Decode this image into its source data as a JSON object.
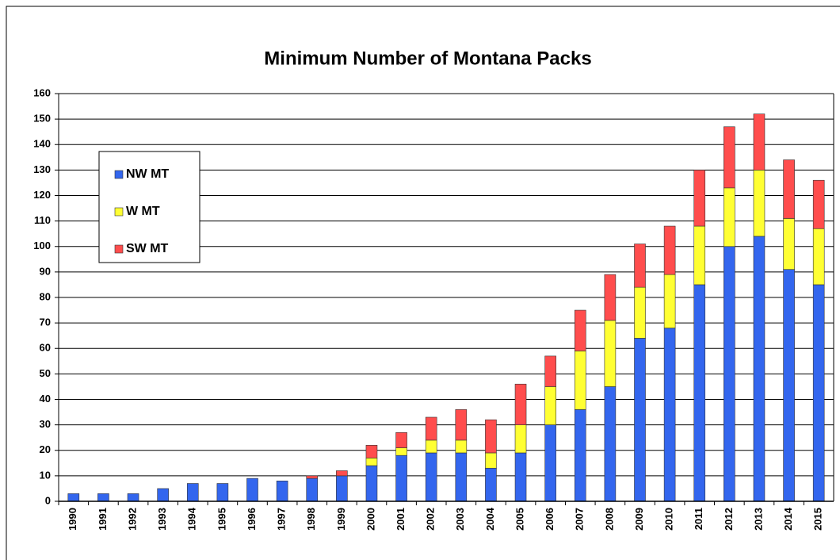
{
  "chart_data": {
    "type": "stacked_bar",
    "title": "Minimum Number of Montana Packs",
    "categories": [
      "1990",
      "1991",
      "1992",
      "1993",
      "1994",
      "1995",
      "1996",
      "1997",
      "1998",
      "1999",
      "2000",
      "2001",
      "2002",
      "2003",
      "2004",
      "2005",
      "2006",
      "2007",
      "2008",
      "2009",
      "2010",
      "2011",
      "2012",
      "2013",
      "2014",
      "2015"
    ],
    "series": [
      {
        "name": "NW MT",
        "color": "#3366ee",
        "values": [
          3,
          3,
          3,
          5,
          7,
          7,
          9,
          8,
          9,
          10,
          14,
          18,
          19,
          19,
          13,
          19,
          30,
          36,
          45,
          64,
          68,
          85,
          100,
          104,
          91,
          85
        ]
      },
      {
        "name": "W MT",
        "color": "#ffff33",
        "values": [
          0,
          0,
          0,
          0,
          0,
          0,
          0,
          0,
          0,
          0,
          3,
          3,
          5,
          5,
          6,
          11,
          15,
          23,
          26,
          20,
          21,
          23,
          23,
          26,
          20,
          22
        ]
      },
      {
        "name": "SW MT",
        "color": "#ff4d4d",
        "values": [
          0,
          0,
          0,
          0,
          0,
          0,
          0,
          0,
          1,
          2,
          5,
          6,
          9,
          12,
          13,
          16,
          12,
          16,
          18,
          17,
          19,
          22,
          24,
          22,
          23,
          19
        ]
      }
    ],
    "ylim": [
      0,
      160
    ],
    "yticks": [
      0,
      10,
      20,
      30,
      40,
      50,
      60,
      70,
      80,
      90,
      100,
      110,
      120,
      130,
      140,
      150,
      160
    ],
    "grid": true,
    "legend": "left"
  }
}
